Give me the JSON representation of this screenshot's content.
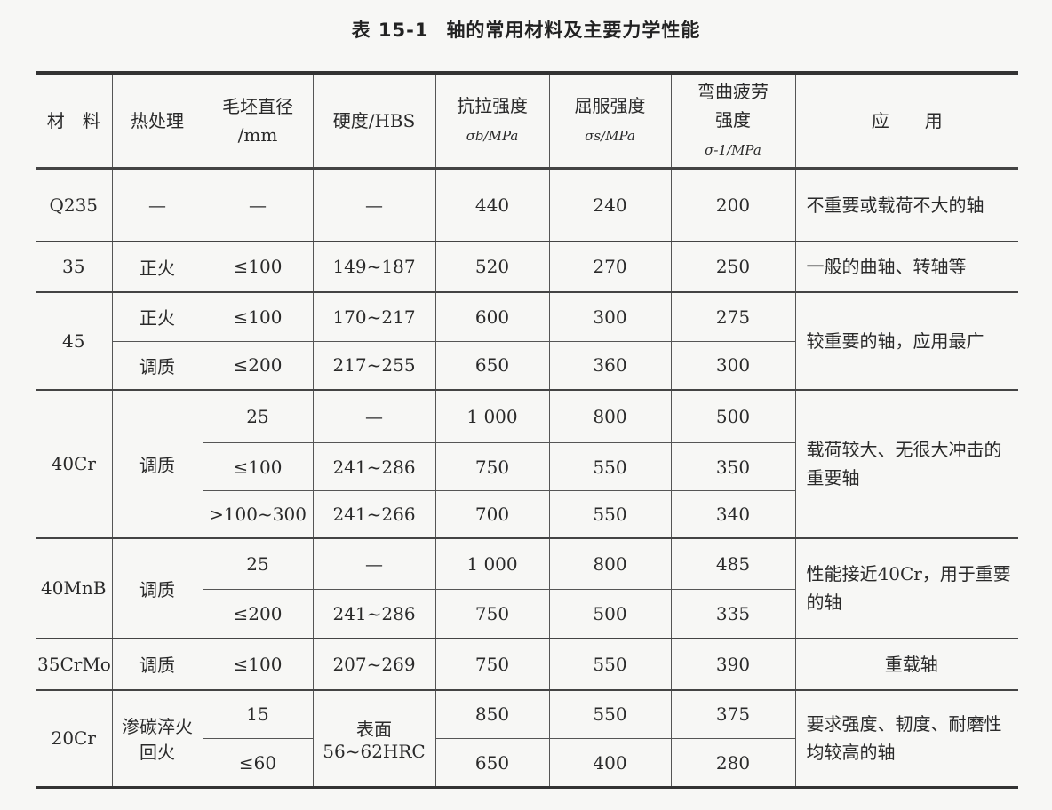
{
  "title": {
    "number": "表 15-1",
    "text": "轴的常用材料及主要力学性能"
  },
  "headers": {
    "material": "材　料",
    "heat": "热处理",
    "diameter": "毛坯直径",
    "diameter_unit": "/mm",
    "hardness": "硬度/HBS",
    "tensile": "抗拉强度",
    "tensile_unit": "σb/MPa",
    "yield": "屈服强度",
    "yield_unit": "σs/MPa",
    "fatigue1": "弯曲疲劳",
    "fatigue2": "强度",
    "fatigue_unit": "σ-1/MPa",
    "application": "应　　用"
  },
  "rows": [
    {
      "material": "Q235",
      "heat": "—",
      "d": "—",
      "hbs": "—",
      "sb": "440",
      "ss": "240",
      "sf": "200",
      "app": "不重要或载荷不大的轴"
    },
    {
      "material": "35",
      "heat": "正火",
      "d": "≤100",
      "hbs": "149~187",
      "sb": "520",
      "ss": "270",
      "sf": "250",
      "app": "一般的曲轴、转轴等"
    },
    {
      "material": "45",
      "heat": "正火",
      "d": "≤100",
      "hbs": "170~217",
      "sb": "600",
      "ss": "300",
      "sf": "275",
      "app": "较重要的轴，应用最广"
    },
    {
      "heat": "调质",
      "d": "≤200",
      "hbs": "217~255",
      "sb": "650",
      "ss": "360",
      "sf": "300"
    },
    {
      "material": "40Cr",
      "heat": "调质",
      "d": "25",
      "hbs": "—",
      "sb": "1 000",
      "ss": "800",
      "sf": "500",
      "app": "载荷较大、无很大冲击的重要轴"
    },
    {
      "d": "≤100",
      "hbs": "241~286",
      "sb": "750",
      "ss": "550",
      "sf": "350"
    },
    {
      "d": ">100~300",
      "hbs": "241~266",
      "sb": "700",
      "ss": "550",
      "sf": "340"
    },
    {
      "material": "40MnB",
      "heat": "调质",
      "d": "25",
      "hbs": "—",
      "sb": "1 000",
      "ss": "800",
      "sf": "485",
      "app": "性能接近40Cr，用于重要的轴"
    },
    {
      "d": "≤200",
      "hbs": "241~286",
      "sb": "750",
      "ss": "500",
      "sf": "335"
    },
    {
      "material": "35CrMo",
      "heat": "调质",
      "d": "≤100",
      "hbs": "207~269",
      "sb": "750",
      "ss": "550",
      "sf": "390",
      "app": "重载轴"
    },
    {
      "material": "20Cr",
      "heat": "渗碳淬火回火",
      "d": "15",
      "hbs": "表面56~62HRC",
      "sb": "850",
      "ss": "550",
      "sf": "375",
      "app": "要求强度、韧度、耐磨性均较高的轴"
    },
    {
      "d": "≤60",
      "sb": "650",
      "ss": "400",
      "sf": "280"
    }
  ]
}
